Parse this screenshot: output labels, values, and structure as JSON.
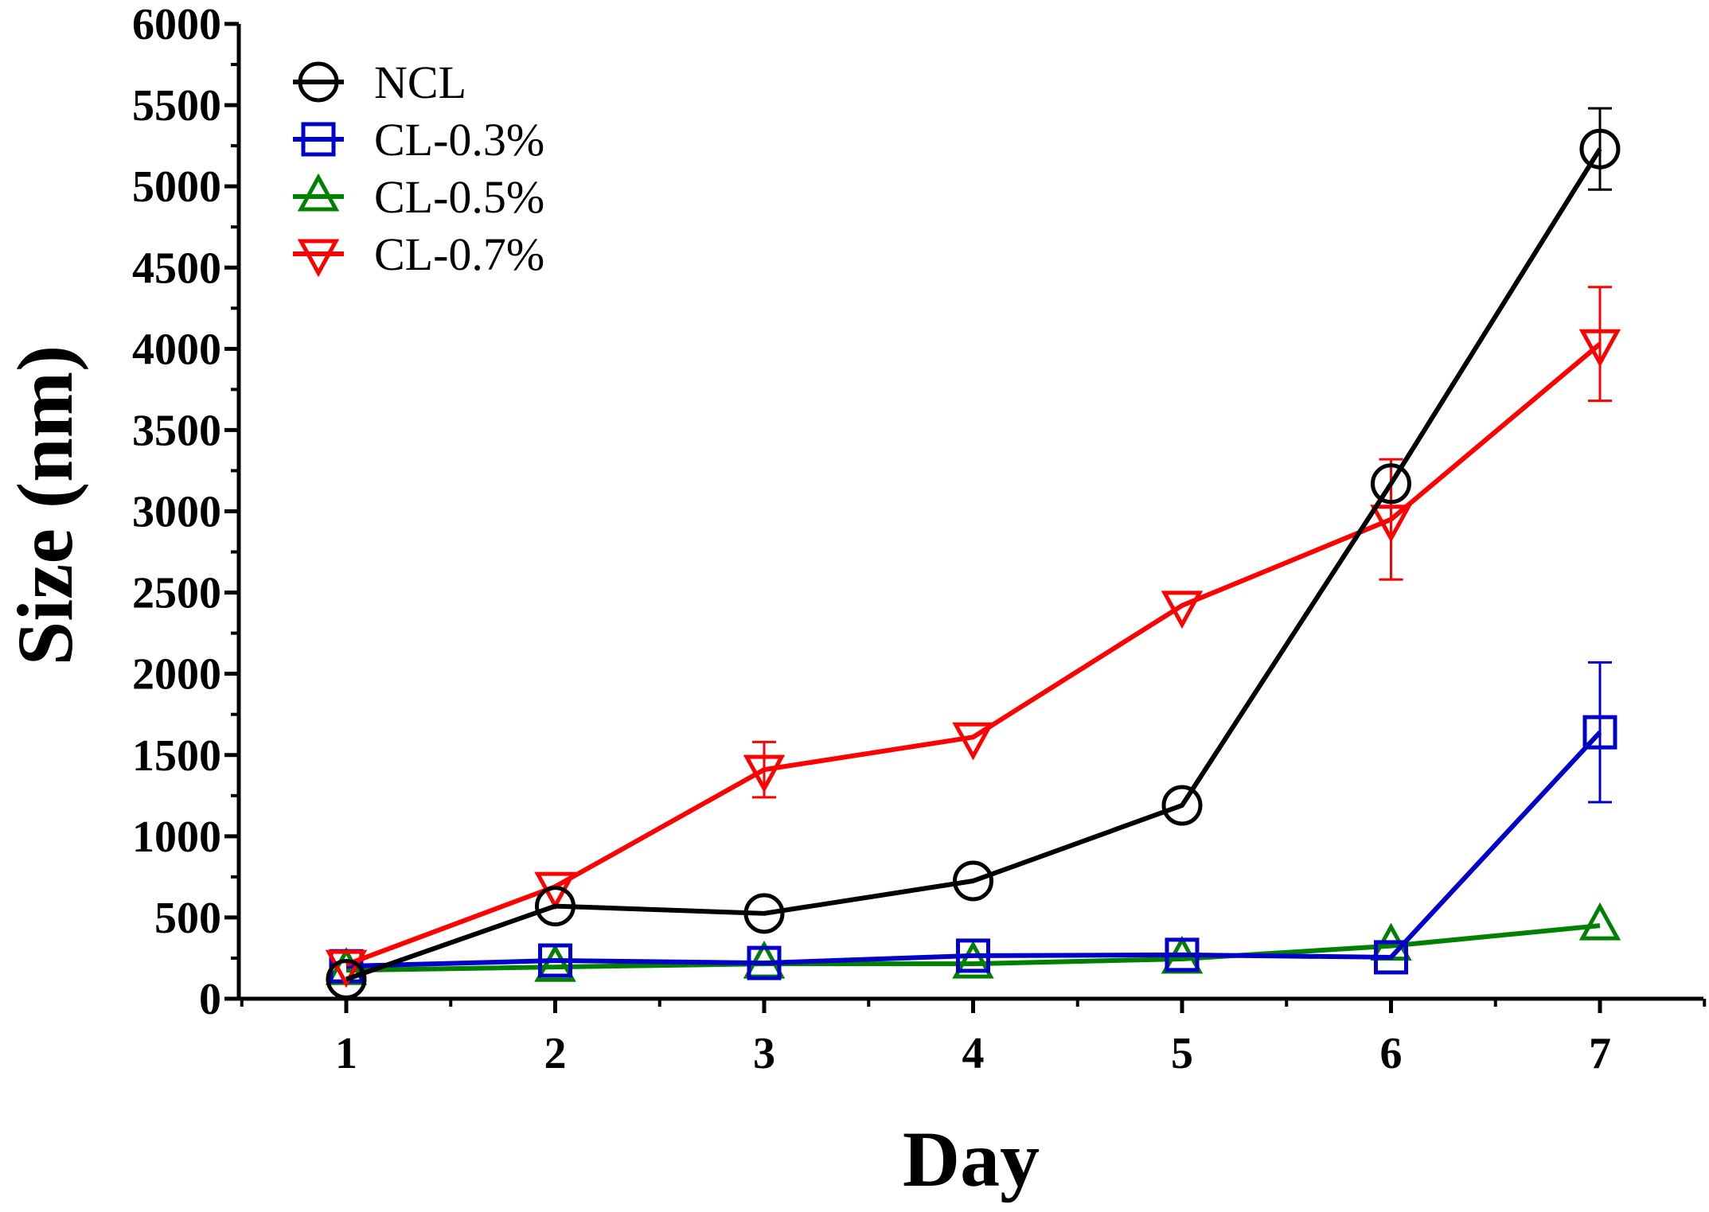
{
  "chart_data": {
    "type": "line",
    "title": "",
    "xlabel": "Day",
    "ylabel": "Size (nm)",
    "x": [
      1,
      2,
      3,
      4,
      5,
      6,
      7
    ],
    "xlim": [
      0.5,
      7.5
    ],
    "ylim": [
      0,
      6000
    ],
    "xticks": [
      1,
      2,
      3,
      4,
      5,
      6,
      7
    ],
    "yticks": [
      0,
      500,
      1000,
      1500,
      2000,
      2500,
      3000,
      3500,
      4000,
      4500,
      5000,
      5500,
      6000
    ],
    "grid": false,
    "legend_position": "top-left",
    "series": [
      {
        "name": "NCL",
        "color": "#000000",
        "marker": "circle",
        "values": [
          120,
          570,
          525,
          725,
          1190,
          3170,
          5230
        ],
        "errors": [
          0,
          0,
          0,
          0,
          0,
          0,
          250
        ]
      },
      {
        "name": "CL-0.3%",
        "color": "#0000c8",
        "marker": "square",
        "values": [
          200,
          235,
          220,
          265,
          270,
          255,
          1640
        ],
        "errors": [
          0,
          0,
          0,
          0,
          0,
          0,
          430
        ]
      },
      {
        "name": "CL-0.5%",
        "color": "#008000",
        "marker": "triangle-up",
        "values": [
          175,
          195,
          215,
          215,
          245,
          325,
          450
        ],
        "errors": [
          0,
          0,
          0,
          0,
          0,
          0,
          0
        ]
      },
      {
        "name": "CL-0.7%",
        "color": "#ff0000",
        "marker": "triangle-down",
        "values": [
          210,
          690,
          1410,
          1610,
          2420,
          2950,
          4030
        ],
        "errors": [
          0,
          0,
          170,
          0,
          0,
          370,
          350
        ]
      }
    ]
  }
}
